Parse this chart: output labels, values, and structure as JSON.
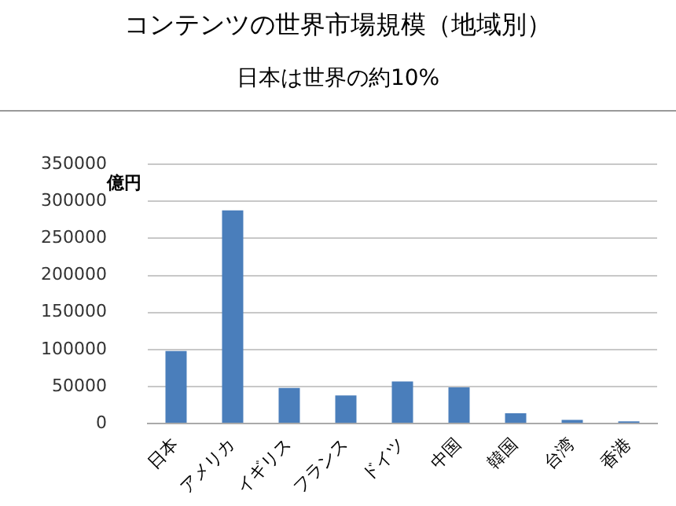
{
  "chart_data": {
    "type": "bar",
    "title": "コンテンツの世界市場規模（地域別）",
    "subtitle": "日本は世界の約10%",
    "ylabel": "億円",
    "categories": [
      "日本",
      "アメリカ",
      "イギリス",
      "フランス",
      "ドイツ",
      "中国",
      "韓国",
      "台湾",
      "香港"
    ],
    "values": [
      98000,
      288000,
      48000,
      38000,
      57000,
      49000,
      14000,
      5000,
      3000
    ],
    "color": "#4a7ebb",
    "ylim": [
      0,
      350000
    ],
    "yticks": [
      0,
      50000,
      100000,
      150000,
      200000,
      250000,
      300000,
      350000
    ],
    "grid": "y",
    "legend": false
  }
}
